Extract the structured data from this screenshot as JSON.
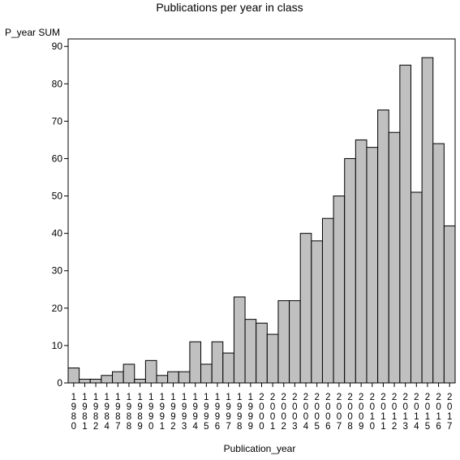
{
  "chart_data": {
    "type": "bar",
    "title": "Publications per year in class",
    "ylabel": "P_year SUM",
    "xlabel": "Publication_year",
    "ylim": [
      0,
      92
    ],
    "yticks": [
      0,
      10,
      20,
      30,
      40,
      50,
      60,
      70,
      80,
      90
    ],
    "grid": false,
    "categories": [
      "1980",
      "1981",
      "1982",
      "1984",
      "1987",
      "1988",
      "1989",
      "1990",
      "1991",
      "1992",
      "1993",
      "1994",
      "1995",
      "1996",
      "1997",
      "1998",
      "1999",
      "2000",
      "2001",
      "2002",
      "2003",
      "2004",
      "2005",
      "2006",
      "2007",
      "2008",
      "2009",
      "2010",
      "2011",
      "2012",
      "2013",
      "2014",
      "2015",
      "2016",
      "2017"
    ],
    "values": [
      4,
      1,
      1,
      2,
      3,
      5,
      1,
      6,
      2,
      3,
      3,
      11,
      5,
      11,
      8,
      23,
      17,
      16,
      13,
      22,
      22,
      40,
      38,
      44,
      50,
      60,
      65,
      63,
      73,
      67,
      85,
      51,
      87,
      64,
      42
    ],
    "colors": {
      "bar_fill": "#c0c0c0",
      "bar_stroke": "#000000"
    }
  }
}
